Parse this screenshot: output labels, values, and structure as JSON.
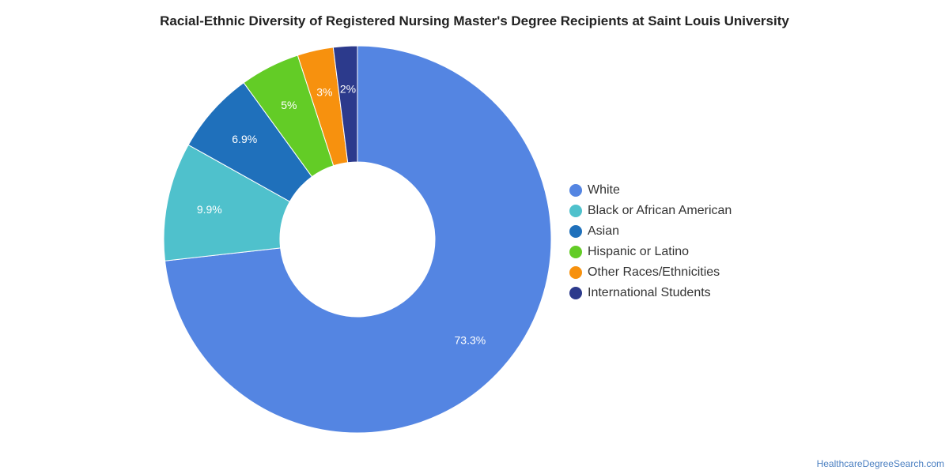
{
  "chart_data": {
    "type": "pie",
    "title": "Racial-Ethnic Diversity of Registered Nursing Master's Degree Recipients at Saint Louis University",
    "categories": [
      "White",
      "Black or African American",
      "Asian",
      "Hispanic or Latino",
      "Other Races/Ethnicities",
      "International Students"
    ],
    "values": [
      73.3,
      9.9,
      6.9,
      5,
      3,
      2
    ],
    "value_labels": [
      "73.3%",
      "9.9%",
      "6.9%",
      "5%",
      "3%",
      "2%"
    ],
    "colors": [
      "#5485e2",
      "#4fc1cc",
      "#1f70bb",
      "#63cc26",
      "#f7910e",
      "#2c3a8c"
    ],
    "donut": true,
    "legend_position": "right"
  },
  "source": "HealthcareDegreeSearch.com"
}
